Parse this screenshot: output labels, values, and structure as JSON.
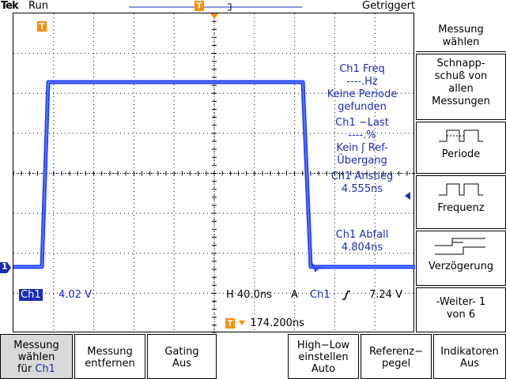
{
  "header": {
    "brand": "Tek",
    "run_state": "Run",
    "trigger_state": "Getriggert"
  },
  "markers": {
    "trigger_position": "T",
    "channel_ground": "1"
  },
  "measurements": [
    {
      "name": "Ch1 Freq",
      "value": "----.Hz",
      "note": "Keine Periode gefunden"
    },
    {
      "name": "Ch1 −Last",
      "value": "----.%",
      "note": "Kein ʃ Ref-Übergang"
    },
    {
      "name": "Ch1 Anstieg",
      "value": "4.555ns",
      "note": ""
    },
    {
      "name": "Ch1 Abfall",
      "value": "4.804ns",
      "note": ""
    }
  ],
  "readouts": {
    "channel_label": "Ch1",
    "channel_scale": "4.02 V",
    "horizontal": "H 40.0ns",
    "trigger_mode": "A",
    "trigger_channel": "Ch1",
    "trigger_slope_icon": "rising-edge-icon",
    "trigger_level": "7.24 V",
    "trigger_offset": "174.200ns"
  },
  "side_menu": {
    "title": "Messung wählen",
    "items": [
      {
        "label": "Schnapp-schuß von allen Messungen",
        "icon": ""
      },
      {
        "label": "Periode",
        "icon": "period-icon"
      },
      {
        "label": "Frequenz",
        "icon": "frequency-icon"
      },
      {
        "label": "Verzögerung",
        "icon": "delay-icon"
      },
      {
        "label": "-Weiter- 1 von 6",
        "icon": ""
      }
    ]
  },
  "bottom_menu": [
    {
      "label1": "Messung",
      "label2": "wählen",
      "label3": "für",
      "label3b": "Ch1",
      "selected": true
    },
    {
      "label1": "Messung",
      "label2": "entfernen",
      "label3": "",
      "selected": false
    },
    {
      "label1": "Gating",
      "label2": "Aus",
      "label3": "",
      "selected": false
    },
    {
      "label1": "High−Low",
      "label2": "einstellen",
      "label3": "Auto",
      "selected": false
    },
    {
      "label1": "Referenz−",
      "label2": "pegel",
      "label3": "",
      "selected": false
    },
    {
      "label1": "Indikatoren",
      "label2": "Aus",
      "label3": "",
      "selected": false
    }
  ],
  "colors": {
    "trace": "#1a3cff",
    "readout": "#1a2bb8",
    "marker": "#ff8c00",
    "grid": "#000000"
  }
}
